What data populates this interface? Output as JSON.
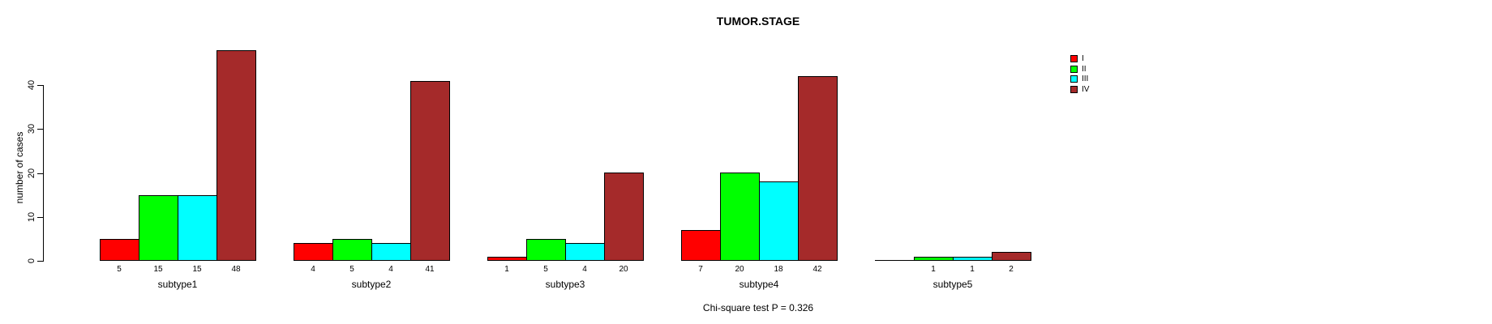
{
  "chart_data": {
    "type": "bar",
    "title": "TUMOR.STAGE",
    "xlabel": "",
    "ylabel": "number of cases",
    "categories": [
      "subtype1",
      "subtype2",
      "subtype3",
      "subtype4",
      "subtype5"
    ],
    "series": [
      {
        "name": "I",
        "color": "#FF0000",
        "values": [
          5,
          4,
          1,
          7,
          0
        ]
      },
      {
        "name": "II",
        "color": "#00FF00",
        "values": [
          15,
          5,
          5,
          20,
          1
        ]
      },
      {
        "name": "III",
        "color": "#00FFFF",
        "values": [
          15,
          4,
          4,
          18,
          1
        ]
      },
      {
        "name": "IV",
        "color": "#A52A2A",
        "values": [
          48,
          41,
          20,
          42,
          2
        ]
      }
    ],
    "bar_value_labels": [
      [
        "5",
        "15",
        "15",
        "48"
      ],
      [
        "4",
        "5",
        "4",
        "41"
      ],
      [
        "1",
        "5",
        "4",
        "20"
      ],
      [
        "7",
        "20",
        "18",
        "42"
      ],
      [
        "",
        "1",
        "1",
        "2"
      ]
    ],
    "y_ticks": [
      0,
      10,
      20,
      30,
      40
    ],
    "ylim": [
      0,
      48
    ],
    "grid": false,
    "legend_position": "top-right",
    "legend_entries": [
      "I",
      "II",
      "III",
      "IV"
    ],
    "annotation": "Chi-square test P = 0.326"
  }
}
